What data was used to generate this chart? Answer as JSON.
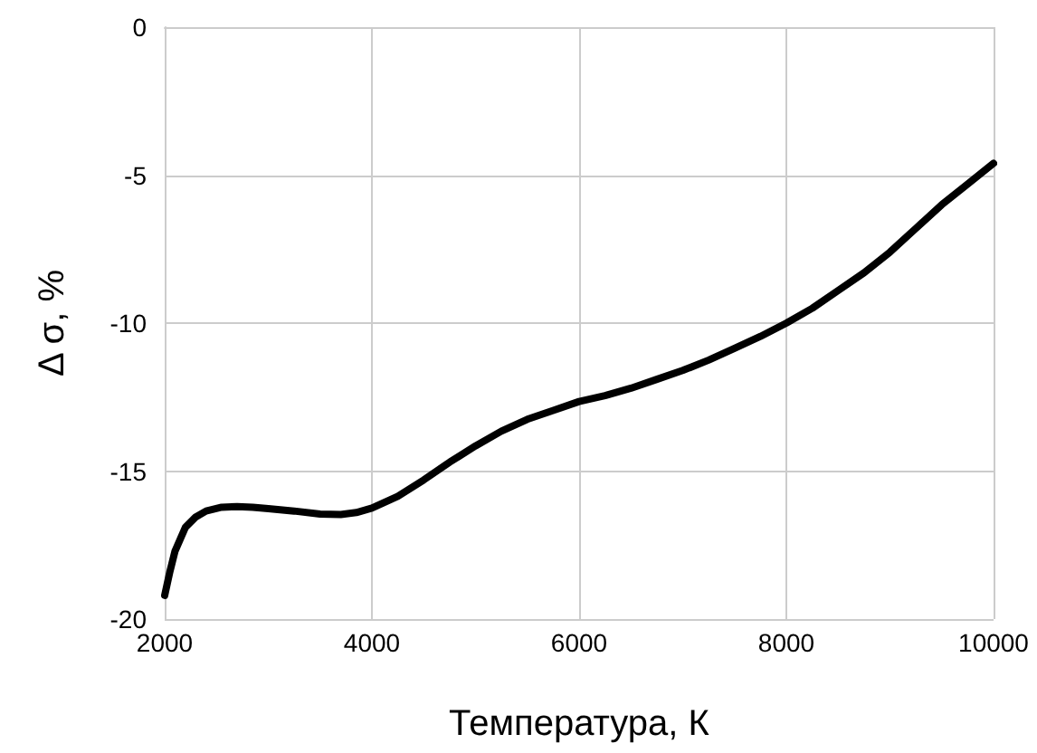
{
  "chart_data": {
    "type": "line",
    "xlabel": "Температура, К",
    "ylabel": "Δ σ, %",
    "x": [
      2000,
      2050,
      2100,
      2200,
      2300,
      2400,
      2550,
      2700,
      2850,
      3000,
      3250,
      3500,
      3700,
      3850,
      4000,
      4250,
      4500,
      4750,
      5000,
      5250,
      5500,
      5750,
      6000,
      6250,
      6500,
      6750,
      7000,
      7250,
      7500,
      7750,
      8000,
      8250,
      8500,
      8750,
      9000,
      9250,
      9500,
      9750,
      10000
    ],
    "series": [
      {
        "color": "#000000",
        "values": [
          -19.2,
          -18.4,
          -17.7,
          -16.9,
          -16.55,
          -16.35,
          -16.22,
          -16.2,
          -16.22,
          -16.27,
          -16.35,
          -16.45,
          -16.47,
          -16.4,
          -16.25,
          -15.85,
          -15.3,
          -14.7,
          -14.15,
          -13.65,
          -13.25,
          -12.95,
          -12.65,
          -12.45,
          -12.2,
          -11.9,
          -11.6,
          -11.25,
          -10.85,
          -10.45,
          -10.0,
          -9.5,
          -8.9,
          -8.3,
          -7.6,
          -6.8,
          -6.0,
          -5.3,
          -4.6
        ]
      }
    ],
    "xlim": [
      2000,
      10000
    ],
    "xticks": [
      2000,
      4000,
      6000,
      8000,
      10000
    ],
    "ylim": [
      -20,
      0
    ],
    "yticks": [
      -20,
      -15,
      -10,
      -5,
      0
    ],
    "grid": true,
    "marker": "none",
    "line_style": "solid"
  }
}
